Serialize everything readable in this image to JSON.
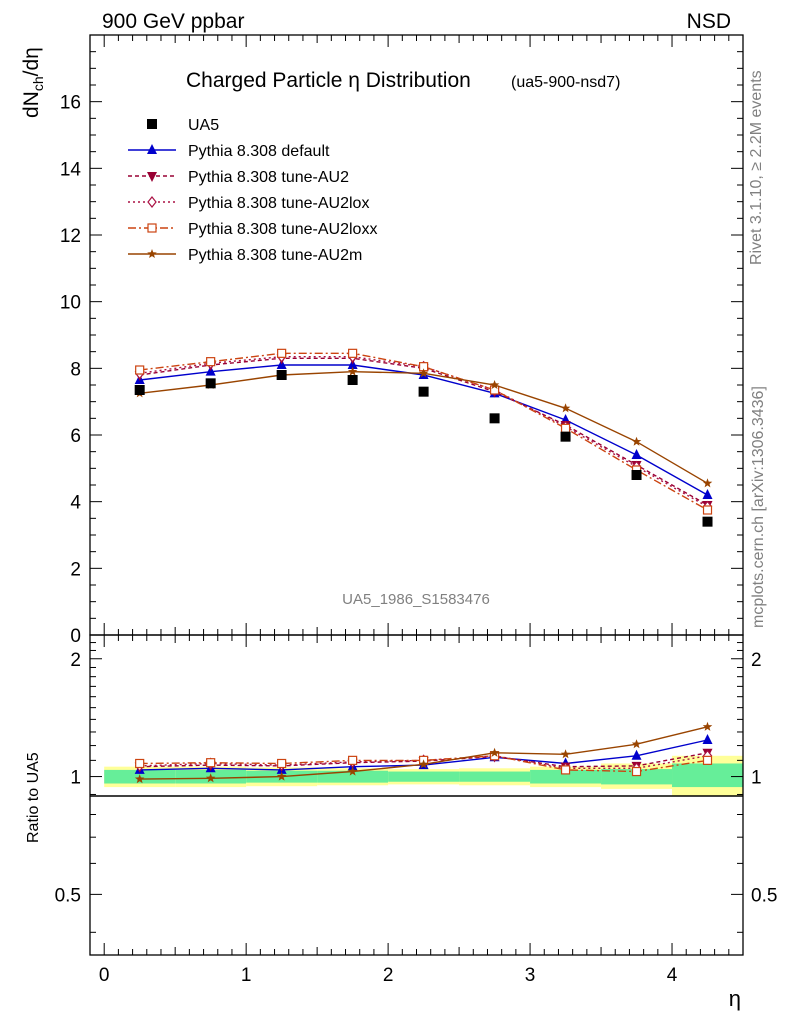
{
  "header": {
    "left": "900 GeV ppbar",
    "right": "NSD"
  },
  "side_text": {
    "rivet": "Rivet 3.1.10, ≥ 2.2M events",
    "mcplots": "mcplots.cern.ch [arXiv:1306.3436]"
  },
  "chart_data": [
    {
      "type": "line",
      "title": "Charged Particle η Distribution",
      "title_suffix": "(ua5-900-nsd7)",
      "watermark": "UA5_1986_S1583476",
      "ylabel": "dN_ch/dη",
      "ylabel_main": "dN",
      "ylabel_sub": "ch",
      "ylabel_tail": "/dη",
      "xlim": [
        -0.1,
        4.5
      ],
      "ylim": [
        0,
        18
      ],
      "yticks": [
        0,
        2,
        4,
        6,
        8,
        10,
        12,
        14,
        16
      ],
      "ytick_labels": [
        "0",
        "2",
        "4",
        "6",
        "8",
        "10",
        "12",
        "14",
        "16"
      ],
      "x": [
        0.25,
        0.75,
        1.25,
        1.75,
        2.25,
        2.75,
        3.25,
        3.75,
        4.25
      ],
      "data": {
        "name": "UA5",
        "values": [
          7.35,
          7.55,
          7.8,
          7.65,
          7.3,
          6.5,
          5.95,
          4.8,
          3.4
        ],
        "color": "#000000"
      },
      "series": [
        {
          "name": "Pythia 8.308 default",
          "color": "#0000cc",
          "marker": "triangle-up",
          "dash": "",
          "values": [
            7.65,
            7.9,
            8.1,
            8.1,
            7.8,
            7.25,
            6.45,
            5.4,
            4.2
          ]
        },
        {
          "name": "Pythia 8.308 tune-AU2",
          "color": "#990033",
          "marker": "triangle-down",
          "dash": "4,3",
          "values": [
            7.8,
            8.1,
            8.3,
            8.3,
            8.0,
            7.3,
            6.3,
            5.1,
            3.9
          ]
        },
        {
          "name": "Pythia 8.308 tune-AU2lox",
          "color": "#aa1144",
          "marker": "diamond-open",
          "dash": "2,3",
          "values": [
            7.85,
            8.15,
            8.35,
            8.35,
            8.05,
            7.35,
            6.25,
            5.05,
            3.85
          ]
        },
        {
          "name": "Pythia 8.308 tune-AU2loxx",
          "color": "#cc4411",
          "marker": "square-open",
          "dash": "8,3,2,3",
          "values": [
            7.95,
            8.2,
            8.45,
            8.45,
            8.05,
            7.35,
            6.2,
            4.95,
            3.75
          ]
        },
        {
          "name": "Pythia 8.308 tune-AU2m",
          "color": "#994400",
          "marker": "star",
          "dash": "",
          "values": [
            7.25,
            7.5,
            7.8,
            7.9,
            7.85,
            7.5,
            6.8,
            5.8,
            4.55
          ]
        }
      ]
    },
    {
      "type": "line",
      "ylabel": "Ratio to UA5",
      "xlabel": "η",
      "xlim": [
        -0.1,
        4.5
      ],
      "ylim": [
        0.35,
        2.3
      ],
      "xticks": [
        0,
        1,
        2,
        3,
        4
      ],
      "xtick_labels": [
        "0",
        "1",
        "2",
        "3",
        "4"
      ],
      "yticks": [
        0.5,
        1,
        2
      ],
      "ytick_labels": [
        "0.5",
        "1",
        "2"
      ],
      "band_green": [
        [
          0.96,
          1.04
        ],
        [
          0.96,
          1.04
        ],
        [
          0.965,
          1.035
        ],
        [
          0.965,
          1.035
        ],
        [
          0.97,
          1.03
        ],
        [
          0.97,
          1.03
        ],
        [
          0.96,
          1.04
        ],
        [
          0.955,
          1.045
        ],
        [
          0.94,
          1.08
        ]
      ],
      "band_yellow": [
        [
          0.94,
          1.06
        ],
        [
          0.94,
          1.06
        ],
        [
          0.945,
          1.055
        ],
        [
          0.95,
          1.05
        ],
        [
          0.955,
          1.045
        ],
        [
          0.95,
          1.05
        ],
        [
          0.94,
          1.06
        ],
        [
          0.93,
          1.08
        ],
        [
          0.89,
          1.13
        ]
      ],
      "series": [
        {
          "name": "Pythia 8.308 default",
          "values": [
            1.04,
            1.05,
            1.04,
            1.06,
            1.07,
            1.12,
            1.08,
            1.13,
            1.24
          ]
        },
        {
          "name": "Pythia 8.308 tune-AU2",
          "values": [
            1.06,
            1.07,
            1.065,
            1.085,
            1.095,
            1.125,
            1.06,
            1.065,
            1.15
          ]
        },
        {
          "name": "Pythia 8.308 tune-AU2lox",
          "values": [
            1.065,
            1.08,
            1.07,
            1.09,
            1.1,
            1.13,
            1.05,
            1.05,
            1.13
          ]
        },
        {
          "name": "Pythia 8.308 tune-AU2loxx",
          "values": [
            1.08,
            1.085,
            1.08,
            1.1,
            1.1,
            1.13,
            1.04,
            1.03,
            1.1
          ]
        },
        {
          "name": "Pythia 8.308 tune-AU2m",
          "values": [
            0.985,
            0.99,
            1.0,
            1.03,
            1.075,
            1.15,
            1.14,
            1.21,
            1.34
          ]
        }
      ]
    }
  ]
}
